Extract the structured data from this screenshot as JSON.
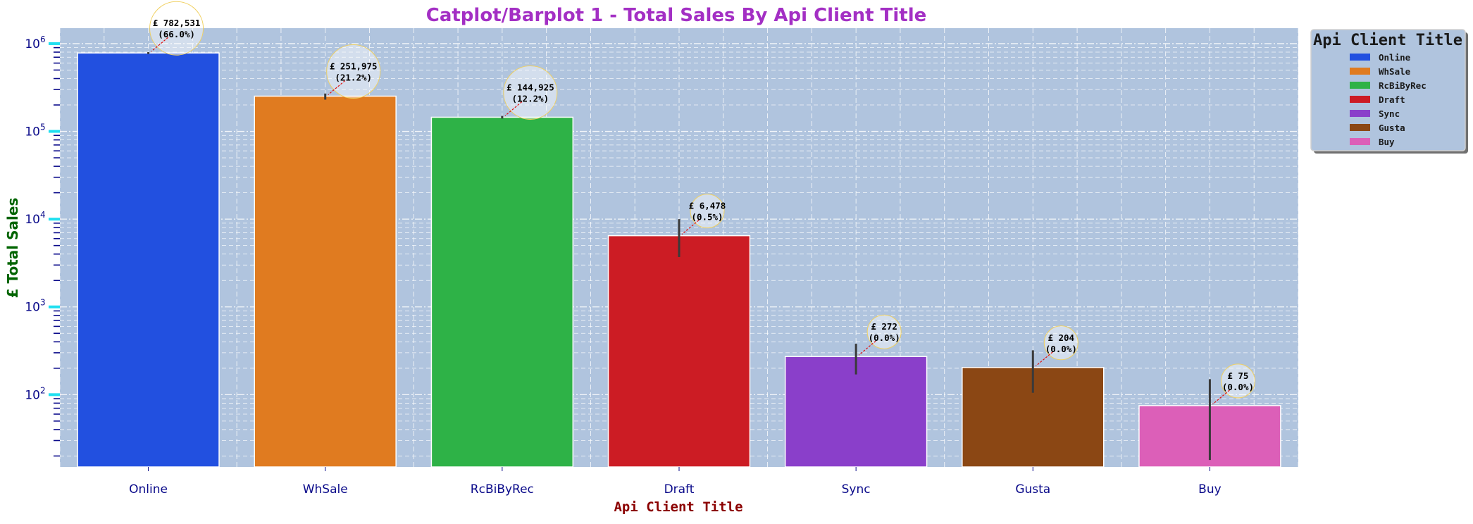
{
  "chart_data": {
    "type": "bar",
    "title": "Catplot/Barplot 1 - Total Sales By Api Client Title",
    "xlabel": "Api Client Title",
    "ylabel": "£ Total Sales",
    "yscale": "log",
    "ylim": [
      15,
      1500000
    ],
    "y_ticks": [
      {
        "value": 100,
        "base": "10",
        "exp": "2"
      },
      {
        "value": 1000,
        "base": "10",
        "exp": "3"
      },
      {
        "value": 10000,
        "base": "10",
        "exp": "4"
      },
      {
        "value": 100000,
        "base": "10",
        "exp": "5"
      },
      {
        "value": 1000000,
        "base": "10",
        "exp": "6"
      }
    ],
    "grid": true,
    "legend": {
      "title": "Api Client Title",
      "placement": "outside-right"
    },
    "categories": [
      "Online",
      "WhSale",
      "RcBiByRec",
      "Draft",
      "Sync",
      "Gusta",
      "Buy"
    ],
    "values": [
      782531,
      251975,
      144925,
      6478,
      272,
      204,
      75
    ],
    "error_bars": [
      [
        760000,
        800000
      ],
      [
        230000,
        270000
      ],
      [
        140000,
        150000
      ],
      [
        3700,
        10000
      ],
      [
        170,
        380
      ],
      [
        105,
        320
      ],
      [
        18,
        150
      ]
    ],
    "labels": [
      {
        "amount": "£ 782,531",
        "pct": "(66.0%)"
      },
      {
        "amount": "£ 251,975",
        "pct": "(21.2%)"
      },
      {
        "amount": "£ 144,925",
        "pct": "(12.2%)"
      },
      {
        "amount": "£ 6,478",
        "pct": "(0.5%)"
      },
      {
        "amount": "£ 272",
        "pct": "(0.0%)"
      },
      {
        "amount": "£ 204",
        "pct": "(0.0%)"
      },
      {
        "amount": "£ 75",
        "pct": "(0.0%)"
      }
    ],
    "colors": [
      "#2250e0",
      "#e07b20",
      "#2eb247",
      "#cc1c24",
      "#8a3fca",
      "#8b4714",
      "#dc5fb8"
    ],
    "style": {
      "background": "#b0c4de",
      "title_color": "#a32fc4",
      "xlabel_color": "#8b0000",
      "ylabel_color": "#006400",
      "tick_label_color": "#0a0a8a",
      "major_tick_color": "#20e0f0",
      "minor_tick_color": "#0a0a8a",
      "annotation_arrow_color": "#e01010",
      "error_bar_color": "#3a3a3a"
    }
  }
}
